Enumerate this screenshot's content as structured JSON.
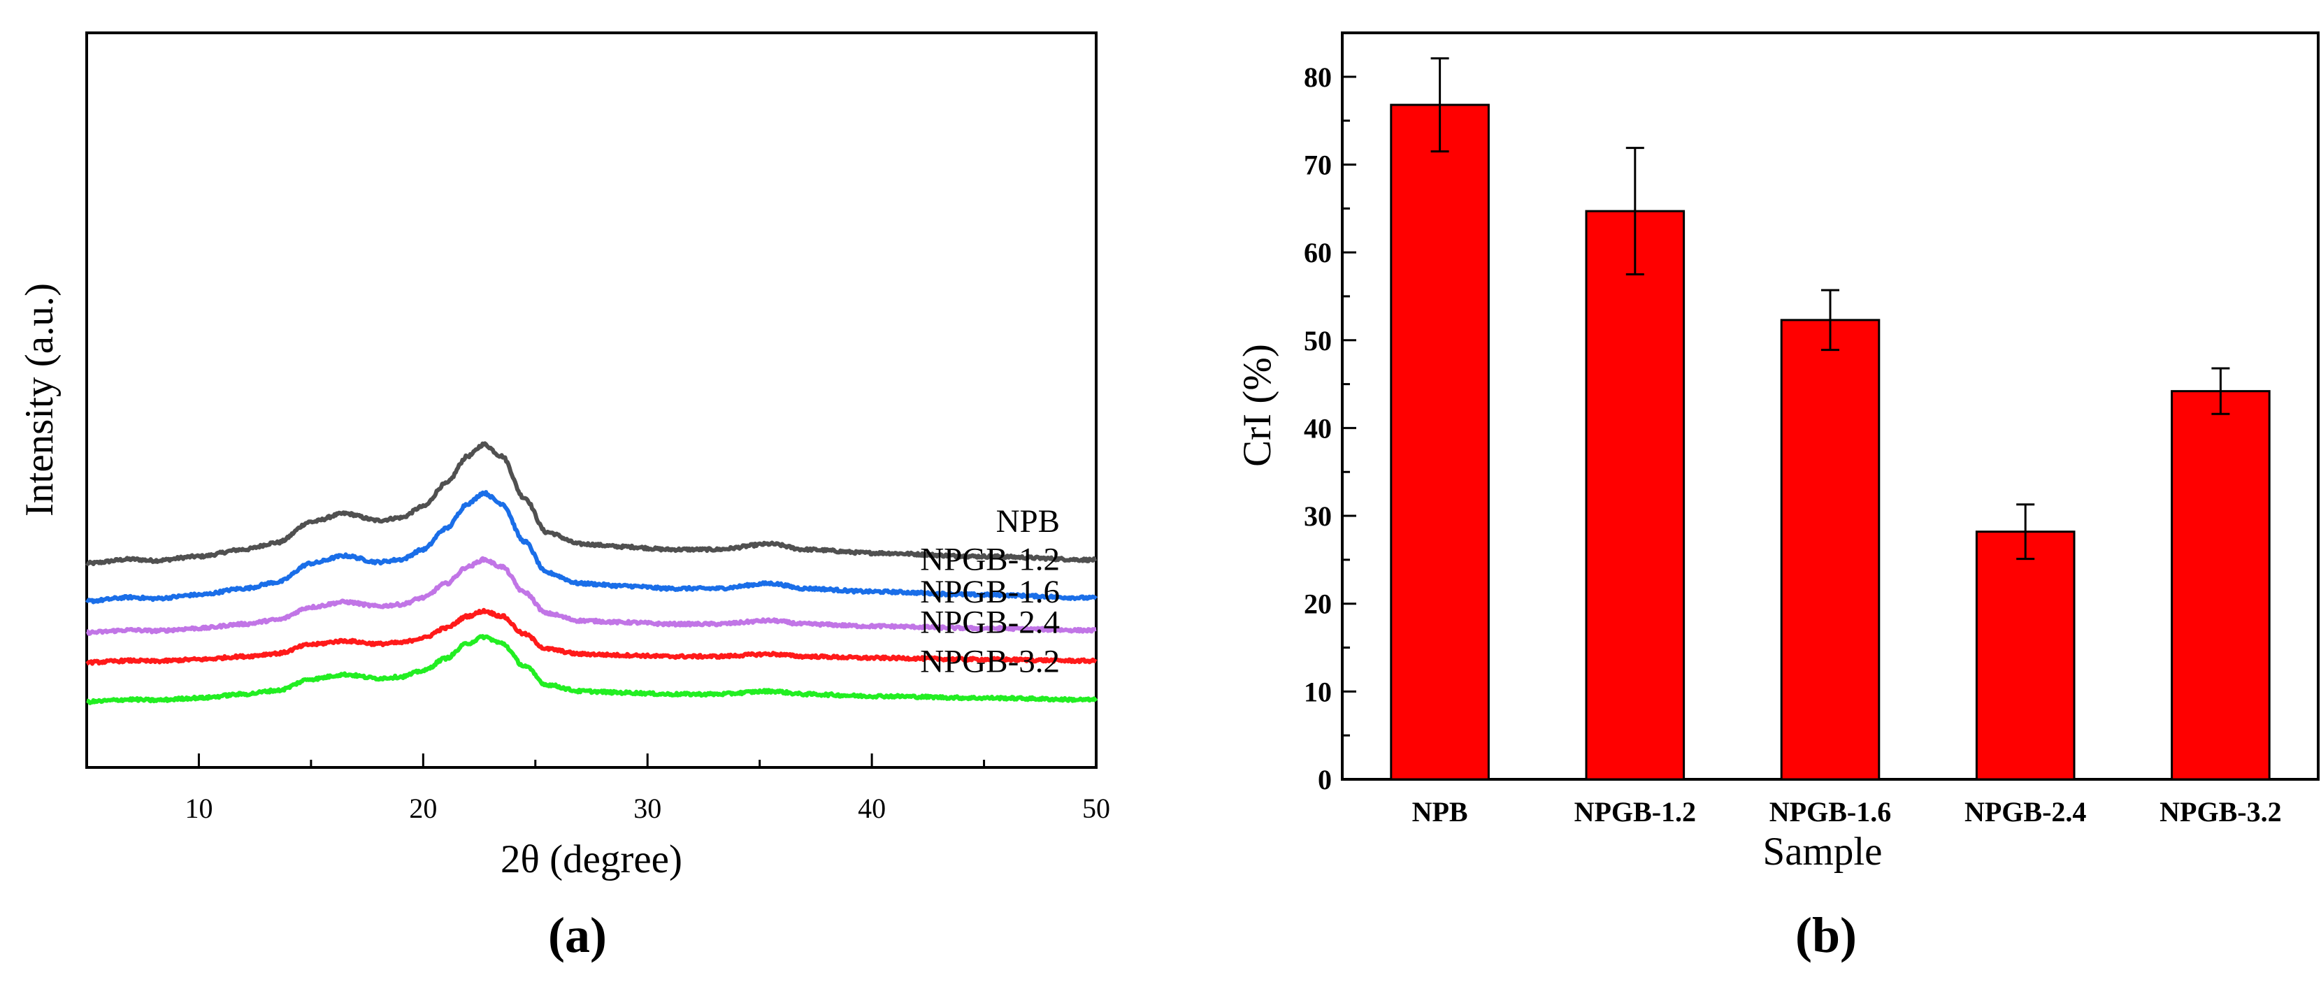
{
  "figure": {
    "panel_labels": [
      "(a)",
      "(b)"
    ]
  },
  "chart_data": [
    {
      "type": "line",
      "title": "",
      "xlabel": "2θ (degree)",
      "ylabel": "Intensity (a.u.)",
      "xlim": [
        5,
        50
      ],
      "xticks": [
        10,
        20,
        30,
        40,
        50
      ],
      "yticks": [],
      "grid": false,
      "legend": "inline labels at right end of each curve",
      "stacked_offsets": true,
      "series": [
        {
          "name": "NPB",
          "color": "#505050",
          "offset": 4.4,
          "scale": 2.2
        },
        {
          "name": "NPGB-1.2",
          "color": "#1a6ee8",
          "offset": 3.2,
          "scale": 2.0
        },
        {
          "name": "NPGB-1.6",
          "color": "#c175e6",
          "offset": 2.2,
          "scale": 1.35
        },
        {
          "name": "NPGB-2.4",
          "color": "#ff1a1a",
          "offset": 1.25,
          "scale": 0.95
        },
        {
          "name": "NPGB-3.2",
          "color": "#22ee22",
          "offset": 0.0,
          "scale": 1.2
        }
      ],
      "profile": {
        "x": [
          5,
          7,
          8,
          10,
          12,
          13.5,
          15,
          16.5,
          18,
          19,
          20,
          21,
          22,
          22.7,
          23.5,
          24.5,
          25.5,
          27,
          29,
          31,
          33,
          35.5,
          37,
          40,
          45,
          50
        ],
        "y": [
          0.0,
          0.06,
          0.04,
          0.1,
          0.2,
          0.3,
          0.6,
          0.72,
          0.62,
          0.66,
          0.82,
          1.15,
          1.55,
          1.72,
          1.55,
          0.95,
          0.45,
          0.28,
          0.24,
          0.2,
          0.2,
          0.28,
          0.2,
          0.15,
          0.1,
          0.05
        ]
      }
    },
    {
      "type": "bar",
      "title": "",
      "xlabel": "Sample",
      "ylabel": "CrI (%)",
      "categories": [
        "NPB",
        "NPGB-1.2",
        "NPGB-1.6",
        "NPGB-2.4",
        "NPGB-3.2"
      ],
      "values": [
        76.8,
        64.7,
        52.3,
        28.2,
        44.2
      ],
      "errors": [
        5.3,
        7.2,
        3.4,
        3.1,
        2.6
      ],
      "ylim": [
        0,
        85
      ],
      "yticks": [
        0,
        10,
        20,
        30,
        40,
        50,
        60,
        70,
        80
      ],
      "bar_color": "#ff0000",
      "grid": false
    }
  ]
}
